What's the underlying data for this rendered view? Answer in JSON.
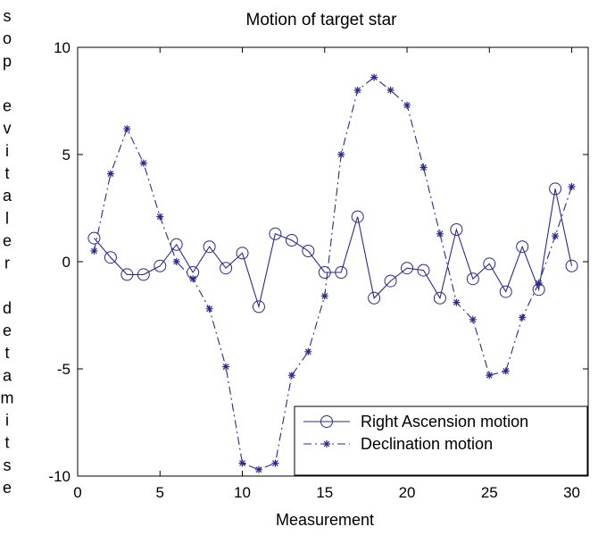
{
  "chart_data": {
    "type": "line",
    "title": "Motion of target star",
    "xlabel": "Measurement",
    "ylabel": "estimated relative pos",
    "xlim": [
      0,
      31
    ],
    "ylim": [
      -10,
      10
    ],
    "xticks": [
      0,
      5,
      10,
      15,
      20,
      25,
      30
    ],
    "yticks": [
      -10,
      -5,
      0,
      5,
      10
    ],
    "grid": false,
    "legend_position": "bottom-right",
    "x": [
      1,
      2,
      3,
      4,
      5,
      6,
      7,
      8,
      9,
      10,
      11,
      12,
      13,
      14,
      15,
      16,
      17,
      18,
      19,
      20,
      21,
      22,
      23,
      24,
      25,
      26,
      27,
      28,
      29,
      30
    ],
    "series": [
      {
        "name": "Right Ascension motion",
        "marker": "circle",
        "line_style": "solid",
        "color": "#2a2a8c",
        "values": [
          1.1,
          0.2,
          -0.6,
          -0.6,
          -0.2,
          0.8,
          -0.5,
          0.7,
          -0.3,
          0.4,
          -2.1,
          1.3,
          1.0,
          0.5,
          -0.5,
          -0.5,
          2.1,
          -1.7,
          -0.9,
          -0.3,
          -0.4,
          -1.7,
          1.5,
          -0.8,
          -0.1,
          -1.4,
          0.7,
          -1.3,
          3.4,
          -0.2
        ]
      },
      {
        "name": "Declination motion",
        "marker": "star",
        "line_style": "dashdot",
        "color": "#2a2a8c",
        "values": [
          0.5,
          4.1,
          6.2,
          4.6,
          2.1,
          0.0,
          -0.8,
          -2.2,
          -4.9,
          -9.4,
          -9.7,
          -9.4,
          -5.3,
          -4.2,
          -1.6,
          5.0,
          8.0,
          8.6,
          8.0,
          7.3,
          4.4,
          1.3,
          -1.9,
          -2.7,
          -5.3,
          -5.1,
          -2.6,
          -1.0,
          1.2,
          3.5
        ]
      }
    ]
  }
}
